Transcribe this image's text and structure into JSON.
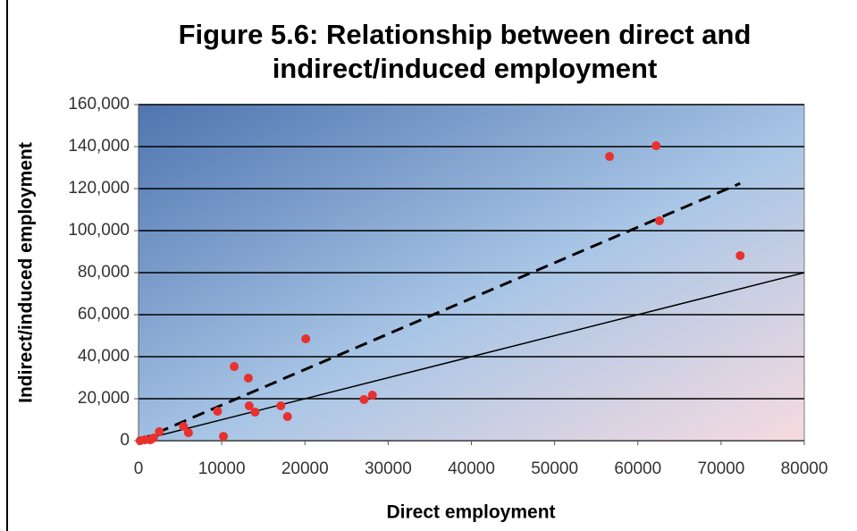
{
  "chart_data": {
    "type": "scatter",
    "title": "Figure 5.6: Relationship between direct and indirect/induced employment",
    "x_label": "Direct employment",
    "y_label": "Indirect/induced employment",
    "x": [
      200,
      750,
      1400,
      1800,
      2500,
      5400,
      6000,
      9500,
      10200,
      11500,
      13200,
      13300,
      14000,
      17100,
      17900,
      20100,
      27100,
      28100,
      56600,
      62200,
      62600,
      72300
    ],
    "values": [
      0,
      400,
      400,
      1300,
      4300,
      6800,
      3800,
      14000,
      2100,
      35300,
      29800,
      16600,
      13600,
      16600,
      11500,
      48500,
      19600,
      21700,
      135300,
      140400,
      104700,
      88100
    ],
    "color": "#e8312f",
    "trend_lines": [
      {
        "x": [
          0,
          72300
        ],
        "y": [
          0,
          122500
        ],
        "style": "dashed",
        "color": "#000000"
      },
      {
        "x": [
          0,
          80000
        ],
        "y": [
          0,
          80000
        ],
        "style": "solid",
        "color": "#000000"
      }
    ],
    "xlim": [
      0,
      80000
    ],
    "xticks": [
      0,
      10000,
      20000,
      30000,
      40000,
      50000,
      60000,
      70000,
      80000
    ],
    "ylim": [
      0,
      160000
    ],
    "yticks": [
      0,
      {
        "value": 20000,
        "label": "20,000"
      },
      {
        "value": 40000,
        "label": "40,000"
      },
      {
        "value": 60000,
        "label": "60,000"
      },
      {
        "value": 80000,
        "label": "80,000"
      },
      {
        "value": 100000,
        "label": "100,000"
      },
      {
        "value": 120000,
        "label": "120,000"
      },
      {
        "value": 140000,
        "label": "140,000"
      },
      {
        "value": 160000,
        "label": "160,000"
      }
    ],
    "grid": true
  }
}
